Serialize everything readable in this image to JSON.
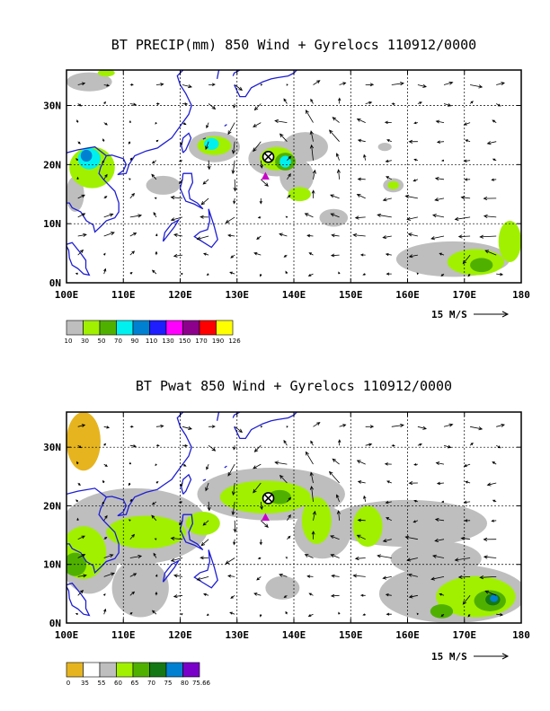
{
  "chart_data": [
    {
      "type": "heatmap",
      "title": "BT PRECIP(mm) 850 Wind + Gyrelocs 110912/0000",
      "x_tick_labels": [
        "100E",
        "110E",
        "120E",
        "130E",
        "140E",
        "150E",
        "160E",
        "170E",
        "180"
      ],
      "y_tick_labels": [
        "0N",
        "10N",
        "20N",
        "30N"
      ],
      "x_ticks_deg": [
        100,
        110,
        120,
        130,
        140,
        150,
        160,
        170,
        180
      ],
      "y_ticks_deg": [
        0,
        10,
        20,
        30
      ],
      "xlim": [
        100,
        180
      ],
      "ylim": [
        0,
        36
      ],
      "vector_scale_label": "15 M/S",
      "grid": true,
      "legend_placement": "bottom-left",
      "colorbar_labels": [
        "10",
        "30",
        "50",
        "70",
        "90",
        "110",
        "130",
        "150",
        "170",
        "190",
        "126"
      ],
      "colorbar_colors": [
        "#bebebe",
        "#a0f000",
        "#50b000",
        "#00f0f0",
        "#0080d0",
        "#1e1eff",
        "#ff00ff",
        "#8c008c",
        "#ff0000",
        "#ffff00"
      ],
      "markers": [
        {
          "symbol": "circle-x",
          "lon": 135.5,
          "lat": 21.3
        },
        {
          "symbol": "triangle",
          "lon": 135.0,
          "lat": 18.0
        }
      ],
      "fields": [
        {
          "name": "precip",
          "blobs": [
            {
              "lon": 104.5,
              "lat": 19.5,
              "rx": 4.0,
              "ry": 3.5,
              "level": 1
            },
            {
              "lon": 104.0,
              "lat": 21.0,
              "rx": 2.0,
              "ry": 1.8,
              "level": 3
            },
            {
              "lon": 103.5,
              "lat": 21.5,
              "rx": 1.0,
              "ry": 1.0,
              "level": 4
            },
            {
              "lon": 101.5,
              "lat": 15.0,
              "rx": 1.6,
              "ry": 3.0,
              "level": 0
            },
            {
              "lon": 117.0,
              "lat": 16.5,
              "rx": 3.0,
              "ry": 1.6,
              "level": 0
            },
            {
              "lon": 126.0,
              "lat": 23.0,
              "rx": 4.5,
              "ry": 2.6,
              "level": 0
            },
            {
              "lon": 126.0,
              "lat": 23.2,
              "rx": 3.0,
              "ry": 1.6,
              "level": 1
            },
            {
              "lon": 125.5,
              "lat": 23.5,
              "rx": 1.3,
              "ry": 1.0,
              "level": 3
            },
            {
              "lon": 137.0,
              "lat": 21.0,
              "rx": 5.0,
              "ry": 3.0,
              "level": 0
            },
            {
              "lon": 137.0,
              "lat": 21.0,
              "rx": 3.0,
              "ry": 2.0,
              "level": 1
            },
            {
              "lon": 138.5,
              "lat": 20.5,
              "rx": 1.8,
              "ry": 1.5,
              "level": 2
            },
            {
              "lon": 138.5,
              "lat": 20.5,
              "rx": 1.0,
              "ry": 1.0,
              "level": 3
            },
            {
              "lon": 142.0,
              "lat": 23.0,
              "rx": 4.0,
              "ry": 2.5,
              "level": 0
            },
            {
              "lon": 140.5,
              "lat": 18.0,
              "rx": 3.0,
              "ry": 3.0,
              "level": 0
            },
            {
              "lon": 141.0,
              "lat": 15.0,
              "rx": 2.0,
              "ry": 1.2,
              "level": 1
            },
            {
              "lon": 147.0,
              "lat": 11.0,
              "rx": 2.5,
              "ry": 1.5,
              "level": 0
            },
            {
              "lon": 157.5,
              "lat": 16.5,
              "rx": 1.8,
              "ry": 1.2,
              "level": 0
            },
            {
              "lon": 157.5,
              "lat": 16.5,
              "rx": 1.0,
              "ry": 0.7,
              "level": 1
            },
            {
              "lon": 156.0,
              "lat": 23.0,
              "rx": 1.2,
              "ry": 0.7,
              "level": 0
            },
            {
              "lon": 168.0,
              "lat": 4.0,
              "rx": 10.0,
              "ry": 3.0,
              "level": 0
            },
            {
              "lon": 172.0,
              "lat": 3.5,
              "rx": 5.0,
              "ry": 2.2,
              "level": 1
            },
            {
              "lon": 173.0,
              "lat": 3.0,
              "rx": 2.0,
              "ry": 1.2,
              "level": 2
            },
            {
              "lon": 178.0,
              "lat": 7.0,
              "rx": 2.0,
              "ry": 3.5,
              "level": 1
            },
            {
              "lon": 104.0,
              "lat": 34.0,
              "rx": 4.0,
              "ry": 1.6,
              "level": 0
            },
            {
              "lon": 107.0,
              "lat": 35.5,
              "rx": 1.5,
              "ry": 0.6,
              "level": 1
            }
          ]
        }
      ]
    },
    {
      "type": "heatmap",
      "title": "BT Pwat 850 Wind + Gyrelocs 110912/0000",
      "x_tick_labels": [
        "100E",
        "110E",
        "120E",
        "130E",
        "140E",
        "150E",
        "160E",
        "170E",
        "180"
      ],
      "y_tick_labels": [
        "0N",
        "10N",
        "20N",
        "30N"
      ],
      "x_ticks_deg": [
        100,
        110,
        120,
        130,
        140,
        150,
        160,
        170,
        180
      ],
      "y_ticks_deg": [
        0,
        10,
        20,
        30
      ],
      "xlim": [
        100,
        180
      ],
      "ylim": [
        0,
        36
      ],
      "vector_scale_label": "15 M/S",
      "grid": true,
      "legend_placement": "bottom-left",
      "colorbar_labels": [
        "0",
        "35",
        "55",
        "60",
        "65",
        "70",
        "75",
        "80",
        "75.66"
      ],
      "colorbar_colors": [
        "#e6b41e",
        "#ffffff",
        "#bebebe",
        "#a0f000",
        "#50b000",
        "#147814",
        "#0080d0",
        "#7800c8"
      ],
      "markers": [
        {
          "symbol": "circle-x",
          "lon": 135.5,
          "lat": 21.3
        },
        {
          "symbol": "triangle",
          "lon": 135.0,
          "lat": 18.0
        }
      ],
      "fields": [
        {
          "name": "pwat",
          "blobs": [
            {
              "lon": 103.0,
              "lat": 31.0,
              "rx": 3.0,
              "ry": 5.0,
              "level": 0
            },
            {
              "lon": 136.0,
              "lat": 22.0,
              "rx": 13.0,
              "ry": 4.5,
              "level": 2
            },
            {
              "lon": 145.0,
              "lat": 15.5,
              "rx": 5.0,
              "ry": 4.5,
              "level": 2
            },
            {
              "lon": 160.0,
              "lat": 17.0,
              "rx": 14.0,
              "ry": 4.0,
              "level": 2
            },
            {
              "lon": 112.0,
              "lat": 16.5,
              "rx": 13.0,
              "ry": 6.5,
              "level": 2
            },
            {
              "lon": 104.0,
              "lat": 11.0,
              "rx": 5.0,
              "ry": 6.0,
              "level": 2
            },
            {
              "lon": 113.0,
              "lat": 6.0,
              "rx": 5.0,
              "ry": 5.0,
              "level": 2
            },
            {
              "lon": 168.0,
              "lat": 5.0,
              "rx": 13.0,
              "ry": 5.0,
              "level": 2
            },
            {
              "lon": 165.0,
              "lat": 11.0,
              "rx": 8.0,
              "ry": 3.0,
              "level": 2
            },
            {
              "lon": 138.0,
              "lat": 6.0,
              "rx": 3.0,
              "ry": 2.0,
              "level": 2
            },
            {
              "lon": 135.0,
              "lat": 21.5,
              "rx": 8.0,
              "ry": 2.8,
              "level": 3
            },
            {
              "lon": 144.0,
              "lat": 17.5,
              "rx": 2.6,
              "ry": 4.0,
              "level": 3
            },
            {
              "lon": 153.0,
              "lat": 16.5,
              "rx": 2.6,
              "ry": 3.5,
              "level": 3
            },
            {
              "lon": 103.0,
              "lat": 12.0,
              "rx": 4.0,
              "ry": 4.5,
              "level": 3
            },
            {
              "lon": 114.0,
              "lat": 15.5,
              "rx": 7.0,
              "ry": 2.8,
              "level": 3
            },
            {
              "lon": 124.0,
              "lat": 17.0,
              "rx": 3.0,
              "ry": 2.0,
              "level": 3
            },
            {
              "lon": 172.0,
              "lat": 4.5,
              "rx": 7.0,
              "ry": 3.5,
              "level": 3
            },
            {
              "lon": 137.5,
              "lat": 21.5,
              "rx": 2.0,
              "ry": 1.2,
              "level": 4
            },
            {
              "lon": 101.5,
              "lat": 10.0,
              "rx": 2.0,
              "ry": 2.0,
              "level": 4
            },
            {
              "lon": 174.5,
              "lat": 3.8,
              "rx": 2.8,
              "ry": 1.8,
              "level": 4
            },
            {
              "lon": 166.0,
              "lat": 2.0,
              "rx": 2.0,
              "ry": 1.2,
              "level": 4
            },
            {
              "lon": 175.0,
              "lat": 4.0,
              "rx": 1.3,
              "ry": 1.0,
              "level": 5
            },
            {
              "lon": 175.2,
              "lat": 4.2,
              "rx": 0.7,
              "ry": 0.6,
              "level": 6
            }
          ]
        }
      ]
    }
  ]
}
